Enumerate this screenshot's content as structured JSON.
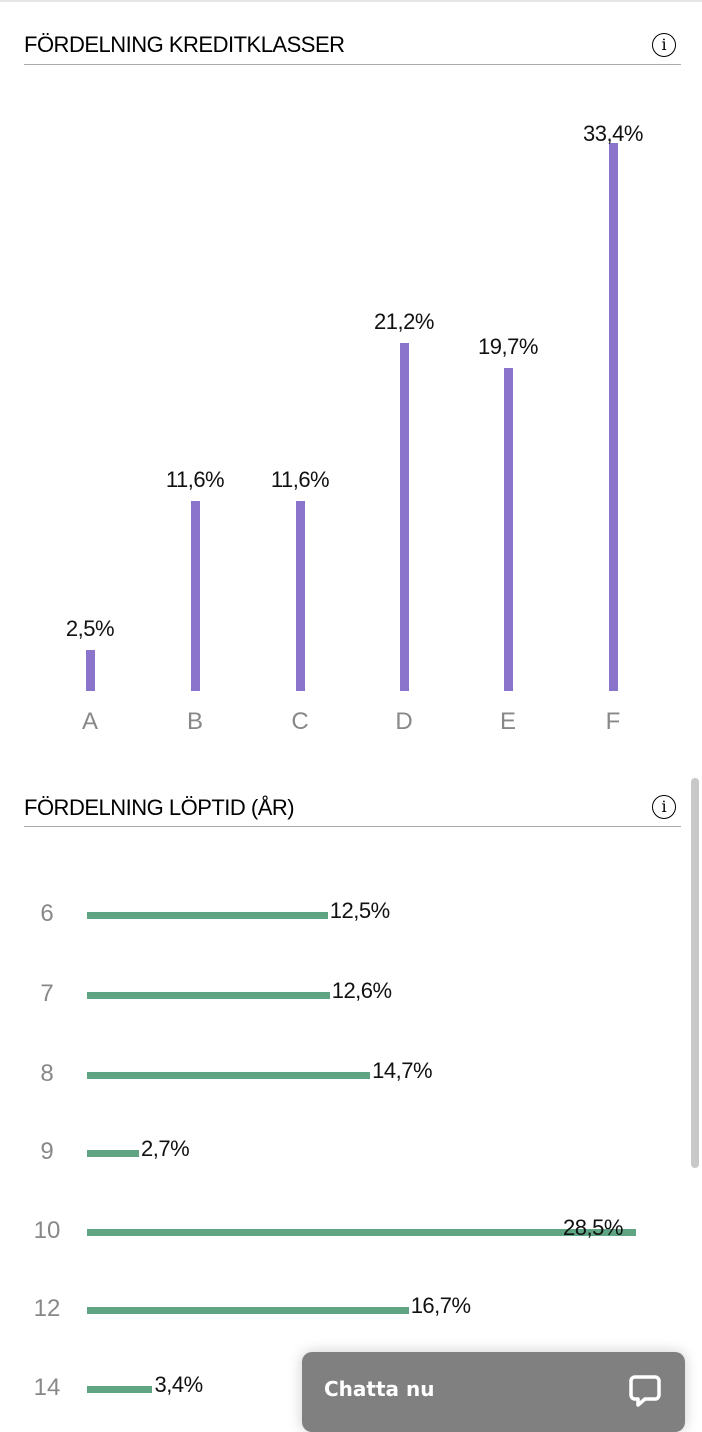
{
  "chart_data": [
    {
      "type": "bar",
      "title": "FÖRDELNING KREDITKLASSER",
      "orientation": "vertical",
      "categories": [
        "A",
        "B",
        "C",
        "D",
        "E",
        "F"
      ],
      "values": [
        2.5,
        11.6,
        11.6,
        21.2,
        19.7,
        33.4
      ],
      "labels": [
        "2,5%",
        "11,6%",
        "11,6%",
        "21,2%",
        "19,7%",
        "33,4%"
      ],
      "unit": "%",
      "color": "#8a74cc",
      "grid": false
    },
    {
      "type": "bar",
      "title": "FÖRDELNING LÖPTID (ÅR)",
      "orientation": "horizontal",
      "categories": [
        "6",
        "7",
        "8",
        "9",
        "10",
        "12",
        "14"
      ],
      "values": [
        12.5,
        12.6,
        14.7,
        2.7,
        28.5,
        16.7,
        3.4
      ],
      "labels": [
        "12,5%",
        "12,6%",
        "14,7%",
        "2,7%",
        "28,5%",
        "16,7%",
        "3,4%"
      ],
      "unit": "%",
      "color": "#5fa583",
      "grid": false
    }
  ],
  "info_icon": "info-circle-icon",
  "chat": {
    "label": "Chatta nu",
    "icon": "chat-bubble-icon",
    "background": "#808080"
  }
}
